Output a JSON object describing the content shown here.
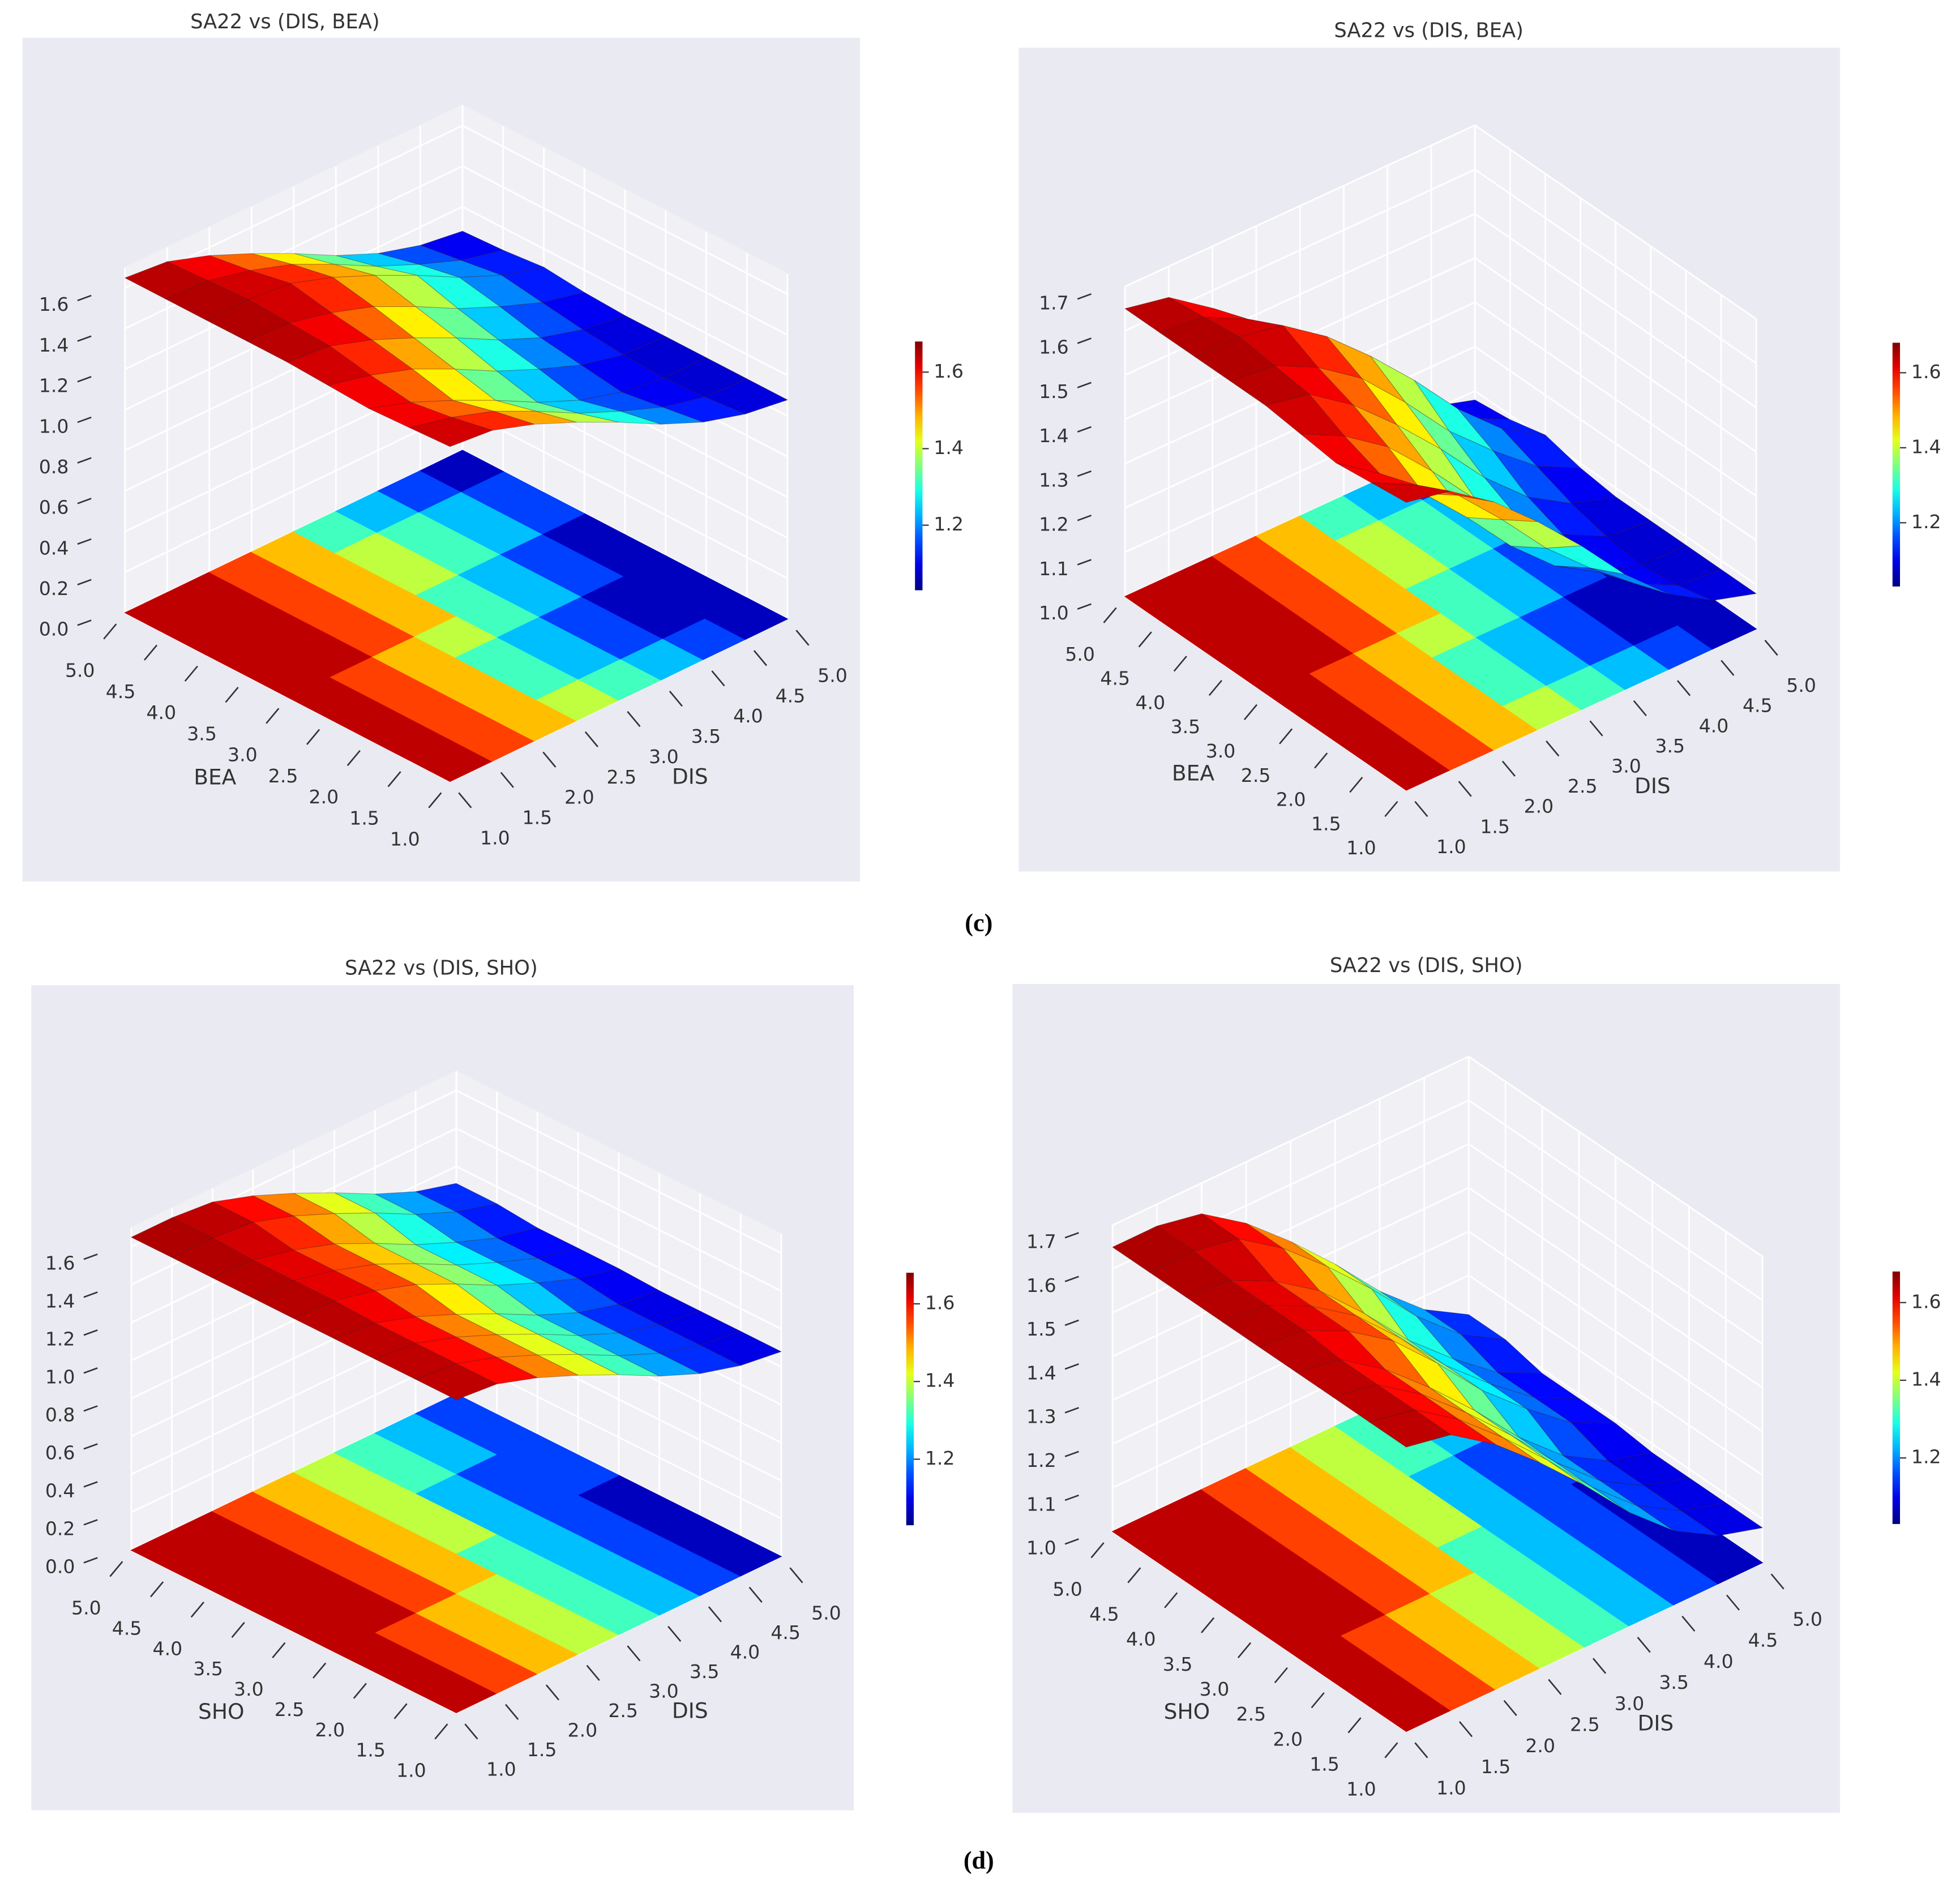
{
  "captions": [
    "(c)",
    "(d)"
  ],
  "chart_data": [
    {
      "type": "surface3d",
      "title": "SA22 vs (DIS, BEA)",
      "xlabel": "DIS",
      "ylabel": "BEA",
      "colormap": "jet",
      "x": [
        1,
        1.5,
        2,
        2.5,
        3,
        3.5,
        4,
        4.5,
        5
      ],
      "y": [
        1,
        1.5,
        2,
        2.5,
        3,
        3.5,
        4,
        4.5,
        5
      ],
      "z": [
        [
          1.65,
          1.63,
          1.56,
          1.47,
          1.37,
          1.26,
          1.17,
          1.11,
          1.08
        ],
        [
          1.64,
          1.59,
          1.52,
          1.42,
          1.31,
          1.22,
          1.14,
          1.09,
          1.08
        ],
        [
          1.63,
          1.56,
          1.47,
          1.37,
          1.26,
          1.17,
          1.11,
          1.08,
          1.08
        ],
        [
          1.64,
          1.59,
          1.52,
          1.42,
          1.31,
          1.22,
          1.14,
          1.09,
          1.08
        ],
        [
          1.65,
          1.63,
          1.56,
          1.47,
          1.37,
          1.26,
          1.17,
          1.11,
          1.08
        ],
        [
          1.65,
          1.64,
          1.59,
          1.52,
          1.42,
          1.31,
          1.22,
          1.14,
          1.09
        ],
        [
          1.65,
          1.65,
          1.63,
          1.56,
          1.47,
          1.37,
          1.26,
          1.17,
          1.11
        ],
        [
          1.65,
          1.64,
          1.59,
          1.52,
          1.42,
          1.31,
          1.22,
          1.14,
          1.09
        ],
        [
          1.65,
          1.63,
          1.56,
          1.47,
          1.37,
          1.26,
          1.17,
          1.11,
          1.08
        ]
      ],
      "xlim": [
        1,
        5
      ],
      "ylim": [
        1,
        5
      ],
      "zlim": [
        0,
        1.7
      ],
      "xticks": [
        {
          "value": 1,
          "label": "1.0"
        },
        1.5,
        {
          "value": 2,
          "label": "2.0"
        },
        2.5,
        {
          "value": 3,
          "label": "3.0"
        },
        3.5,
        {
          "value": 4,
          "label": "4.0"
        },
        4.5,
        {
          "value": 5,
          "label": "5.0"
        }
      ],
      "yticks": [
        {
          "value": 1,
          "label": "1.0"
        },
        1.5,
        {
          "value": 2,
          "label": "2.0"
        },
        2.5,
        {
          "value": 3,
          "label": "3.0"
        },
        3.5,
        {
          "value": 4,
          "label": "4.0"
        },
        4.5,
        {
          "value": 5,
          "label": "5.0"
        }
      ],
      "zticks": [
        {
          "value": 0,
          "label": "0.0"
        },
        0.2,
        0.4,
        0.6,
        0.8,
        {
          "value": 1,
          "label": "1.0"
        },
        1.2,
        1.4,
        1.6
      ],
      "clim": [
        1.03,
        1.68
      ],
      "cticks": [
        1.2,
        1.4,
        1.6
      ]
    },
    {
      "type": "surface3d",
      "title": "SA22 vs (DIS, BEA)",
      "xlabel": "DIS",
      "ylabel": "BEA",
      "colormap": "jet",
      "x": [
        1,
        1.5,
        2,
        2.5,
        3,
        3.5,
        4,
        4.5,
        5
      ],
      "y": [
        1,
        1.5,
        2,
        2.5,
        3,
        3.5,
        4,
        4.5,
        5
      ],
      "z": [
        [
          1.65,
          1.63,
          1.56,
          1.47,
          1.37,
          1.26,
          1.17,
          1.11,
          1.08
        ],
        [
          1.64,
          1.59,
          1.52,
          1.42,
          1.31,
          1.22,
          1.14,
          1.09,
          1.08
        ],
        [
          1.63,
          1.56,
          1.47,
          1.37,
          1.26,
          1.17,
          1.11,
          1.08,
          1.08
        ],
        [
          1.64,
          1.59,
          1.52,
          1.42,
          1.31,
          1.22,
          1.14,
          1.09,
          1.08
        ],
        [
          1.65,
          1.63,
          1.56,
          1.47,
          1.37,
          1.26,
          1.17,
          1.11,
          1.08
        ],
        [
          1.65,
          1.64,
          1.59,
          1.52,
          1.42,
          1.31,
          1.22,
          1.14,
          1.09
        ],
        [
          1.65,
          1.65,
          1.63,
          1.56,
          1.47,
          1.37,
          1.26,
          1.17,
          1.11
        ],
        [
          1.65,
          1.64,
          1.59,
          1.52,
          1.42,
          1.31,
          1.22,
          1.14,
          1.09
        ],
        [
          1.65,
          1.63,
          1.56,
          1.47,
          1.37,
          1.26,
          1.17,
          1.11,
          1.08
        ]
      ],
      "xlim": [
        1,
        5
      ],
      "ylim": [
        1,
        5
      ],
      "zlim": [
        1,
        1.7
      ],
      "xticks": [
        {
          "value": 1,
          "label": "1.0"
        },
        1.5,
        {
          "value": 2,
          "label": "2.0"
        },
        2.5,
        {
          "value": 3,
          "label": "3.0"
        },
        3.5,
        {
          "value": 4,
          "label": "4.0"
        },
        4.5,
        {
          "value": 5,
          "label": "5.0"
        }
      ],
      "yticks": [
        {
          "value": 1,
          "label": "1.0"
        },
        1.5,
        {
          "value": 2,
          "label": "2.0"
        },
        2.5,
        {
          "value": 3,
          "label": "3.0"
        },
        3.5,
        {
          "value": 4,
          "label": "4.0"
        },
        4.5,
        {
          "value": 5,
          "label": "5.0"
        }
      ],
      "zticks": [
        {
          "value": 1,
          "label": "1.0"
        },
        1.1,
        1.2,
        1.3,
        1.4,
        1.5,
        1.6,
        1.7
      ],
      "clim": [
        1.03,
        1.68
      ],
      "cticks": [
        1.2,
        1.4,
        1.6
      ]
    },
    {
      "type": "surface3d",
      "title": "SA22 vs (DIS, SHO)",
      "xlabel": "DIS",
      "ylabel": "SHO",
      "colormap": "jet",
      "x": [
        1,
        1.5,
        2,
        2.5,
        3,
        3.5,
        4,
        4.5,
        5
      ],
      "y": [
        1,
        1.5,
        2,
        2.5,
        3,
        3.5,
        4,
        4.5,
        5
      ],
      "z": [
        [
          1.65,
          1.63,
          1.56,
          1.47,
          1.37,
          1.26,
          1.17,
          1.11,
          1.08
        ],
        [
          1.65,
          1.63,
          1.56,
          1.47,
          1.37,
          1.26,
          1.17,
          1.11,
          1.08
        ],
        [
          1.65,
          1.63,
          1.56,
          1.47,
          1.37,
          1.26,
          1.17,
          1.11,
          1.08
        ],
        [
          1.65,
          1.63,
          1.56,
          1.47,
          1.37,
          1.26,
          1.17,
          1.11,
          1.08
        ],
        [
          1.65,
          1.64,
          1.59,
          1.52,
          1.42,
          1.31,
          1.22,
          1.14,
          1.09
        ],
        [
          1.65,
          1.64,
          1.59,
          1.52,
          1.42,
          1.31,
          1.22,
          1.14,
          1.09
        ],
        [
          1.65,
          1.64,
          1.59,
          1.52,
          1.42,
          1.31,
          1.22,
          1.14,
          1.09
        ],
        [
          1.65,
          1.65,
          1.63,
          1.56,
          1.47,
          1.37,
          1.26,
          1.17,
          1.11
        ],
        [
          1.65,
          1.65,
          1.63,
          1.56,
          1.47,
          1.37,
          1.26,
          1.17,
          1.11
        ]
      ],
      "xlim": [
        1,
        5
      ],
      "ylim": [
        1,
        5
      ],
      "zlim": [
        0,
        1.7
      ],
      "xticks": [
        {
          "value": 1,
          "label": "1.0"
        },
        1.5,
        {
          "value": 2,
          "label": "2.0"
        },
        2.5,
        {
          "value": 3,
          "label": "3.0"
        },
        3.5,
        {
          "value": 4,
          "label": "4.0"
        },
        4.5,
        {
          "value": 5,
          "label": "5.0"
        }
      ],
      "yticks": [
        {
          "value": 1,
          "label": "1.0"
        },
        1.5,
        {
          "value": 2,
          "label": "2.0"
        },
        2.5,
        {
          "value": 3,
          "label": "3.0"
        },
        3.5,
        {
          "value": 4,
          "label": "4.0"
        },
        4.5,
        {
          "value": 5,
          "label": "5.0"
        }
      ],
      "zticks": [
        {
          "value": 0,
          "label": "0.0"
        },
        0.2,
        0.4,
        0.6,
        0.8,
        {
          "value": 1,
          "label": "1.0"
        },
        1.2,
        1.4,
        1.6
      ],
      "clim": [
        1.03,
        1.68
      ],
      "cticks": [
        1.2,
        1.4,
        1.6
      ]
    },
    {
      "type": "surface3d",
      "title": "SA22 vs (DIS, SHO)",
      "xlabel": "DIS",
      "ylabel": "SHO",
      "colormap": "jet",
      "x": [
        1,
        1.5,
        2,
        2.5,
        3,
        3.5,
        4,
        4.5,
        5
      ],
      "y": [
        1,
        1.5,
        2,
        2.5,
        3,
        3.5,
        4,
        4.5,
        5
      ],
      "z": [
        [
          1.65,
          1.63,
          1.56,
          1.47,
          1.37,
          1.26,
          1.17,
          1.11,
          1.08
        ],
        [
          1.65,
          1.63,
          1.56,
          1.47,
          1.37,
          1.26,
          1.17,
          1.11,
          1.08
        ],
        [
          1.65,
          1.63,
          1.56,
          1.47,
          1.37,
          1.26,
          1.17,
          1.11,
          1.08
        ],
        [
          1.65,
          1.63,
          1.56,
          1.47,
          1.37,
          1.26,
          1.17,
          1.11,
          1.08
        ],
        [
          1.65,
          1.64,
          1.59,
          1.52,
          1.42,
          1.31,
          1.22,
          1.14,
          1.09
        ],
        [
          1.65,
          1.64,
          1.59,
          1.52,
          1.42,
          1.31,
          1.22,
          1.14,
          1.09
        ],
        [
          1.65,
          1.64,
          1.59,
          1.52,
          1.42,
          1.31,
          1.22,
          1.14,
          1.09
        ],
        [
          1.65,
          1.65,
          1.63,
          1.56,
          1.47,
          1.37,
          1.26,
          1.17,
          1.11
        ],
        [
          1.65,
          1.65,
          1.63,
          1.56,
          1.47,
          1.37,
          1.26,
          1.17,
          1.11
        ]
      ],
      "xlim": [
        1,
        5
      ],
      "ylim": [
        1,
        5
      ],
      "zlim": [
        1,
        1.7
      ],
      "xticks": [
        {
          "value": 1,
          "label": "1.0"
        },
        1.5,
        {
          "value": 2,
          "label": "2.0"
        },
        2.5,
        {
          "value": 3,
          "label": "3.0"
        },
        3.5,
        {
          "value": 4,
          "label": "4.0"
        },
        4.5,
        {
          "value": 5,
          "label": "5.0"
        }
      ],
      "yticks": [
        {
          "value": 1,
          "label": "1.0"
        },
        1.5,
        {
          "value": 2,
          "label": "2.0"
        },
        2.5,
        {
          "value": 3,
          "label": "3.0"
        },
        3.5,
        {
          "value": 4,
          "label": "4.0"
        },
        4.5,
        {
          "value": 5,
          "label": "5.0"
        }
      ],
      "zticks": [
        {
          "value": 1,
          "label": "1.0"
        },
        1.1,
        1.2,
        1.3,
        1.4,
        1.5,
        1.6,
        1.7
      ],
      "clim": [
        1.03,
        1.68
      ],
      "cticks": [
        1.2,
        1.4,
        1.6
      ]
    }
  ]
}
